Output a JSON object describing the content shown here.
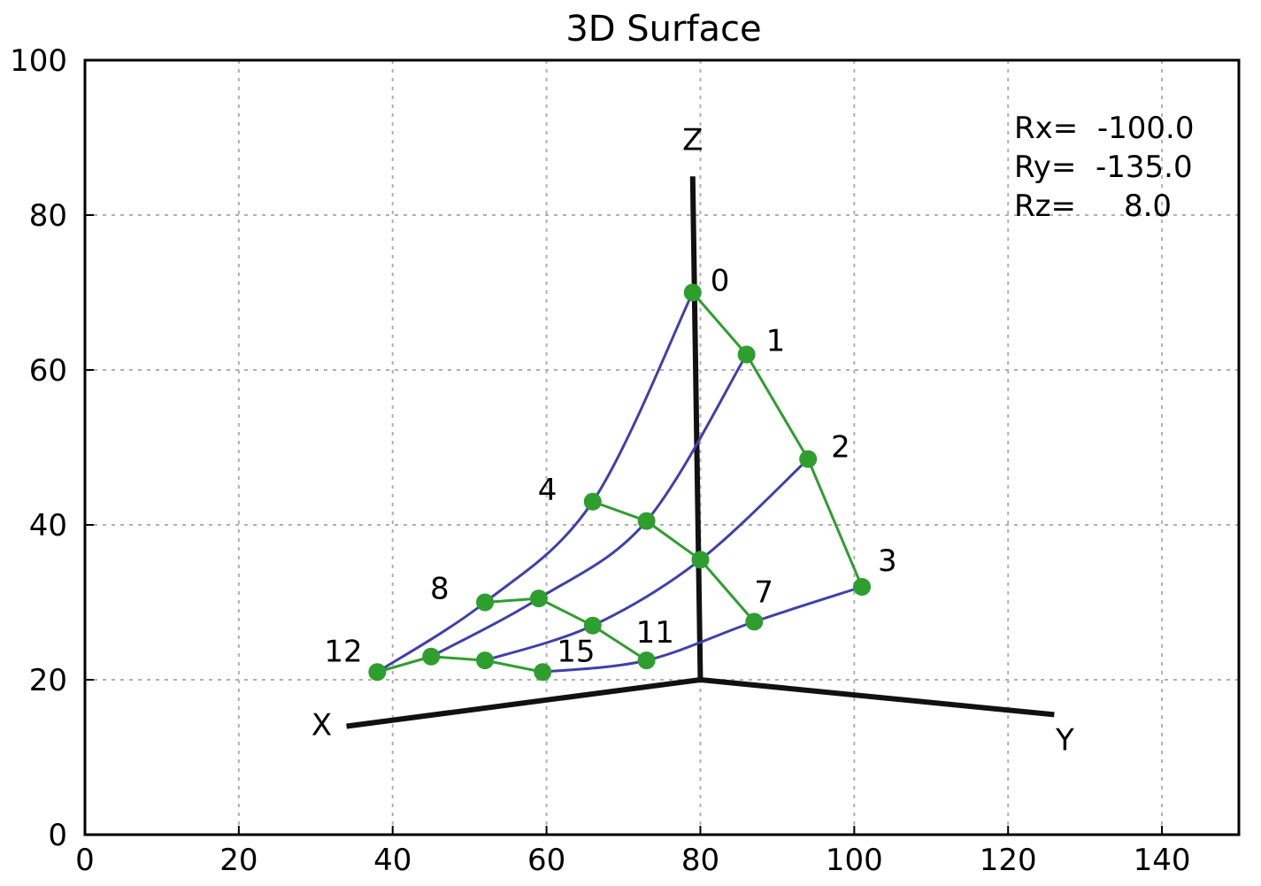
{
  "chart_data": {
    "type": "scatter",
    "title": "3D Surface",
    "xlim": [
      0,
      150
    ],
    "ylim": [
      0,
      100
    ],
    "x_ticks": [
      0,
      20,
      40,
      60,
      80,
      100,
      120,
      140
    ],
    "y_ticks": [
      0,
      20,
      40,
      60,
      80,
      100
    ],
    "grid": true,
    "rotation_text": [
      "Rx=  -100.0",
      "Ry=  -135.0",
      "Rz=     8.0"
    ],
    "axes3d": {
      "origin": [
        80,
        20
      ],
      "x_end": [
        34,
        14
      ],
      "x_label": "X",
      "y_end": [
        126,
        15.5
      ],
      "y_label": "Y",
      "z_end": [
        79,
        85
      ],
      "z_label": "Z"
    },
    "points": [
      {
        "id": 0,
        "x": 79,
        "y": 70,
        "label": "0"
      },
      {
        "id": 1,
        "x": 86,
        "y": 62,
        "label": "1"
      },
      {
        "id": 2,
        "x": 94,
        "y": 48.5,
        "label": "2"
      },
      {
        "id": 3,
        "x": 101,
        "y": 32,
        "label": "3"
      },
      {
        "id": 4,
        "x": 66,
        "y": 43,
        "label": "4"
      },
      {
        "id": 5,
        "x": 73,
        "y": 40.5,
        "label": ""
      },
      {
        "id": 6,
        "x": 80,
        "y": 35.5,
        "label": ""
      },
      {
        "id": 7,
        "x": 87,
        "y": 27.5,
        "label": "7"
      },
      {
        "id": 8,
        "x": 52,
        "y": 30,
        "label": "8"
      },
      {
        "id": 9,
        "x": 59,
        "y": 30.5,
        "label": ""
      },
      {
        "id": 10,
        "x": 66,
        "y": 27,
        "label": ""
      },
      {
        "id": 11,
        "x": 73,
        "y": 22.5,
        "label": "11"
      },
      {
        "id": 12,
        "x": 38,
        "y": 21,
        "label": "12"
      },
      {
        "id": 13,
        "x": 45,
        "y": 23,
        "label": ""
      },
      {
        "id": 14,
        "x": 52,
        "y": 22.5,
        "label": ""
      },
      {
        "id": 15,
        "x": 59.5,
        "y": 21,
        "label": "15"
      }
    ],
    "green_polylines": [
      [
        0,
        1,
        2,
        3
      ],
      [
        4,
        5,
        6,
        7
      ],
      [
        8,
        9,
        10,
        11
      ],
      [
        12,
        13,
        14,
        15
      ]
    ],
    "blue_curves": [
      [
        0,
        4,
        8,
        12
      ],
      [
        1,
        5,
        9,
        13
      ],
      [
        2,
        6,
        10,
        14
      ],
      [
        3,
        7,
        11,
        15
      ]
    ],
    "colors": {
      "point": "#2e9e2e",
      "green_line": "#2e9e2e",
      "blue_line": "#4040aa",
      "axis3d": "#111111"
    }
  }
}
